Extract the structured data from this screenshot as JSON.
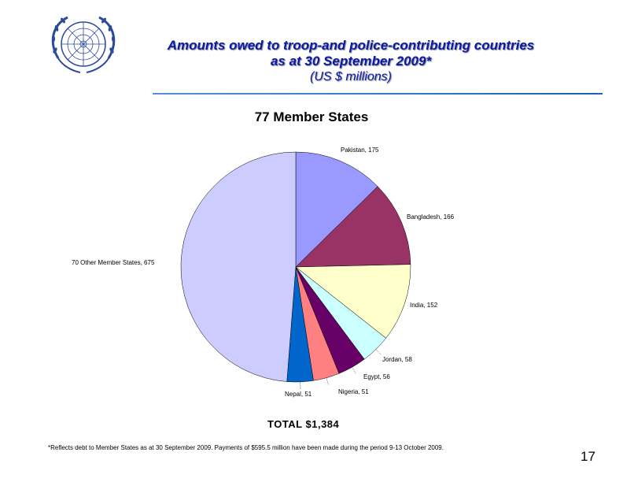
{
  "header": {
    "title_line1": "Amounts owed to troop-and police-contributing countries",
    "title_line2": "as at 30 September 2009*",
    "subtitle": "(US $ millions)"
  },
  "chart_data": {
    "type": "pie",
    "title": "77 Member States",
    "slices": [
      {
        "label": "Pakistan",
        "value": 175,
        "display": "Pakistan,   175",
        "color": "#9999ff"
      },
      {
        "label": "Bangladesh",
        "value": 166,
        "display": "Bangladesh,   166",
        "color": "#993366"
      },
      {
        "label": "India",
        "value": 152,
        "display": "India,   152",
        "color": "#ffffcc"
      },
      {
        "label": "Jordan",
        "value": 58,
        "display": "Jordan,   58",
        "color": "#ccffff"
      },
      {
        "label": "Egypt",
        "value": 56,
        "display": "Egypt,   56",
        "color": "#660066"
      },
      {
        "label": "Nigeria",
        "value": 51,
        "display": "Nigeria,   51",
        "color": "#ff8080"
      },
      {
        "label": "Nepal",
        "value": 51,
        "display": "Nepal,   51",
        "color": "#0066cc"
      },
      {
        "label": "70 Other Member States",
        "value": 675,
        "display": "70 Other Member States,   675",
        "color": "#ccccff"
      }
    ],
    "total": "TOTAL  $1,384"
  },
  "footnote": "*Reflects debt to Member States as at 30 September 2009. Payments of $595.5 million have been made during the period 9-13 October 2009.",
  "page_number": "17",
  "logo": {
    "name": "un-emblem-icon",
    "color": "#2c4a9a"
  }
}
